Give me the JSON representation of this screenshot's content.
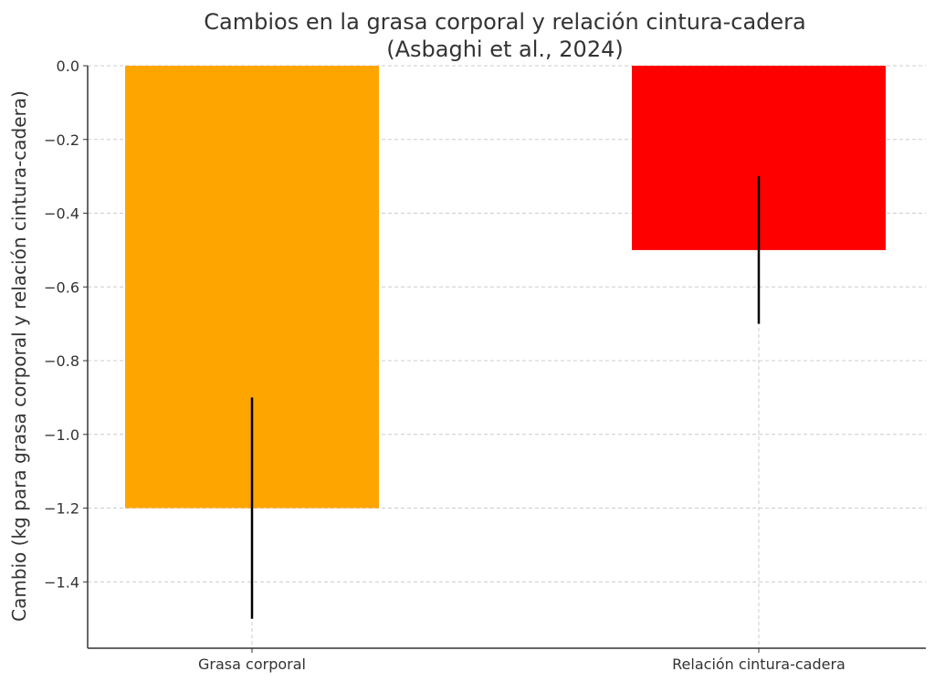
{
  "chart_data": {
    "type": "bar",
    "title": "Cambios en la grasa corporal y relación cintura-cadera",
    "subtitle": "(Asbaghi et al., 2024)",
    "xlabel": "",
    "ylabel": "Cambio (kg para grasa corporal y relación cintura-cadera)",
    "categories": [
      "Grasa corporal",
      "Relación cintura-cadera"
    ],
    "values": [
      -1.2,
      -0.5
    ],
    "error_low": [
      -1.5,
      -0.7
    ],
    "error_high": [
      -0.9,
      -0.3
    ],
    "colors": [
      "#FFA500",
      "#FF0000"
    ],
    "ylim": [
      -1.58,
      0.0
    ],
    "yticks": [
      0.0,
      -0.2,
      -0.4,
      -0.6,
      -0.8,
      -1.0,
      -1.2,
      -1.4
    ],
    "ytick_labels": [
      "0.0",
      "−0.2",
      "−0.4",
      "−0.6",
      "−0.8",
      "−1.0",
      "−1.2",
      "−1.4"
    ],
    "grid": true
  }
}
